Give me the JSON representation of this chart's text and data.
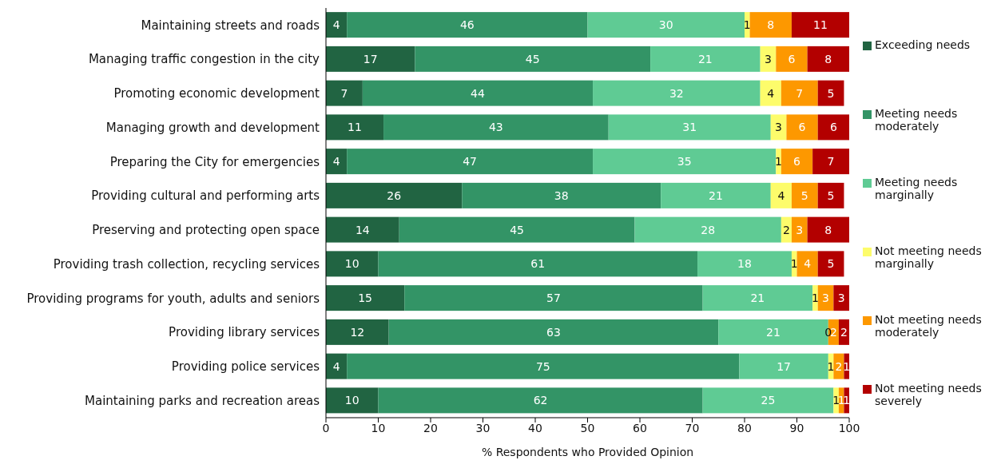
{
  "chart_data": {
    "type": "bar",
    "orientation": "horizontal",
    "stacked": true,
    "data_labels": true,
    "grid": false,
    "legend": "right",
    "xlabel": "% Respondents who Provided Opinion",
    "xlim": [
      0,
      100
    ],
    "xticks": [
      0,
      10,
      20,
      30,
      40,
      50,
      60,
      70,
      80,
      90,
      100
    ],
    "categories": [
      "Maintaining streets and roads",
      "Managing traffic congestion in the city",
      "Promoting economic development",
      "Managing growth and development",
      "Preparing the City for emergencies",
      "Providing cultural and performing arts",
      "Preserving and protecting open space",
      "Providing trash collection, recycling services",
      "Providing programs for youth, adults and seniors",
      "Providing library services",
      "Providing police services",
      "Maintaining parks and recreation areas"
    ],
    "series": [
      {
        "name": "Exceeding needs",
        "color": "#216442",
        "values": [
          4,
          17,
          7,
          11,
          4,
          26,
          14,
          10,
          15,
          12,
          4,
          10
        ]
      },
      {
        "name": "Meeting needs moderately",
        "color": "#339466",
        "values": [
          46,
          45,
          44,
          43,
          47,
          38,
          45,
          61,
          57,
          63,
          75,
          62
        ]
      },
      {
        "name": "Meeting needs marginally",
        "color": "#5fcb94",
        "values": [
          30,
          21,
          32,
          31,
          35,
          21,
          28,
          18,
          21,
          21,
          17,
          25
        ]
      },
      {
        "name": "Not meeting needs marginally",
        "color": "#fdfc6b",
        "values": [
          1,
          3,
          4,
          3,
          1,
          4,
          2,
          1,
          1,
          0,
          1,
          1
        ]
      },
      {
        "name": "Not meeting needs moderately",
        "color": "#fd9800",
        "values": [
          8,
          6,
          7,
          6,
          6,
          5,
          3,
          4,
          3,
          2,
          2,
          1
        ]
      },
      {
        "name": "Not meeting needs severely",
        "color": "#b30000",
        "values": [
          11,
          8,
          5,
          6,
          7,
          5,
          8,
          5,
          3,
          2,
          1,
          1
        ]
      }
    ]
  }
}
